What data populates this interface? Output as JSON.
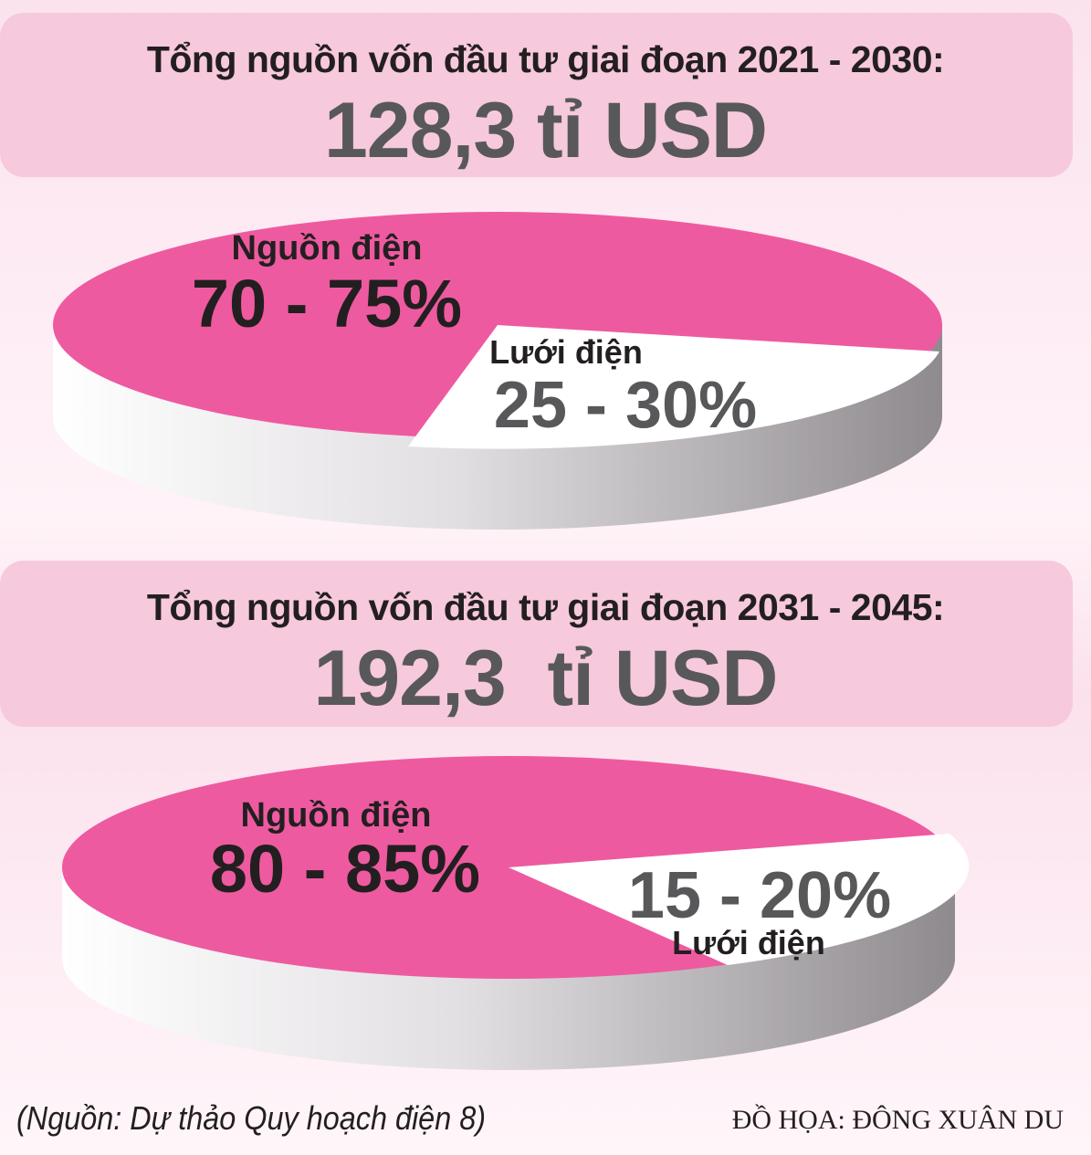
{
  "colors": {
    "power_source": "#ee5aa0",
    "grid": "#ffffff",
    "rim": "#b8b5b8",
    "heading_text": "#231f20",
    "total_text": "#58585a"
  },
  "chart_data": [
    {
      "type": "pie",
      "title": "Tổng nguồn vốn đầu tư giai đoạn 2021 - 2030:",
      "subtitle": "128,3 tỉ USD",
      "slices": [
        {
          "label": "Nguồn điện",
          "value_label": "70 - 75%",
          "value_low": 70,
          "value_high": 75,
          "value": 72.5,
          "color": "#ee5aa0"
        },
        {
          "label": "Lưới điện",
          "value_label": "25 - 30%",
          "value_low": 25,
          "value_high": 30,
          "value": 27.5,
          "color": "#ffffff"
        }
      ]
    },
    {
      "type": "pie",
      "title": "Tổng nguồn vốn đầu tư giai đoạn 2031 - 2045:",
      "subtitle": "192,3  tỉ USD",
      "slices": [
        {
          "label": "Nguồn điện",
          "value_label": "80 - 85%",
          "value_low": 80,
          "value_high": 85,
          "value": 82.5,
          "color": "#ee5aa0"
        },
        {
          "label": "Lưới điện",
          "value_label": "15 - 20%",
          "value_low": 15,
          "value_high": 20,
          "value": 17.5,
          "color": "#ffffff"
        }
      ]
    }
  ],
  "footer": {
    "source": "(Nguồn: Dự thảo Quy hoạch điện 8)",
    "credit": "ĐỒ HỌA: ĐÔNG XUÂN DU"
  }
}
